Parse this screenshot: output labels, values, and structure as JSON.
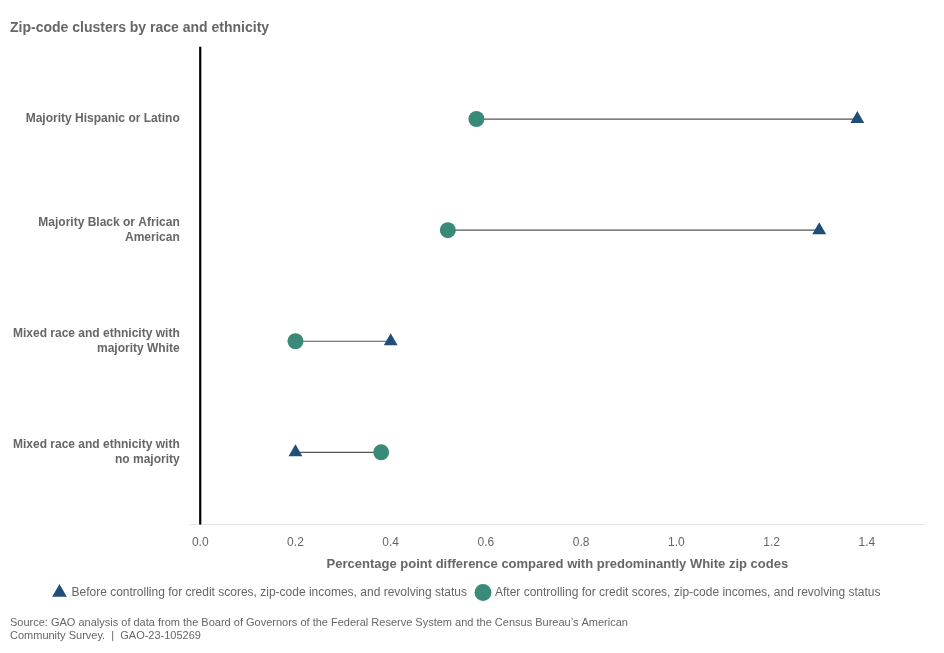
{
  "chart_data": {
    "type": "dumbbell",
    "title": "Zip-code clusters by race and ethnicity",
    "xlabel": "Percentage point difference compared with predominantly White zip codes",
    "annotation": "Source: GAO analysis of data from the Board of Governors of the Federal Reserve System and the Census Bureau’s American\nCommunity Survey.  |  GAO-23-105269",
    "categories": [
      "Mixed race and ethnicity with\nno majority",
      "Mixed race and ethnicity with\nmajority White",
      "Majority Black or African\nAmerican",
      "Majority Hispanic or Latino"
    ],
    "series": [
      {
        "name": "Before controlling for credit scores, zip-code incomes, and revolving status",
        "color": "#1F4E79",
        "marker": "triangle",
        "values": [
          0.2,
          0.4,
          1.3,
          1.38
        ]
      },
      {
        "name": "After controlling for credit scores, zip-code incomes, and revolving status",
        "color": "#3A8A7A",
        "marker": "circle",
        "values": [
          0.38,
          0.2,
          0.52,
          0.58
        ]
      }
    ],
    "color": "#555555",
    "zero_line": 0.0,
    "xlim": [
      -0.02,
      1.52
    ],
    "xticks": [
      {
        "value": 0.0,
        "label": "0.0"
      },
      0.2,
      0.4,
      0.6,
      0.8,
      {
        "value": 1.0,
        "label": "1.0"
      },
      1.2,
      1.4
    ],
    "grid": false,
    "legend": "bottom"
  }
}
